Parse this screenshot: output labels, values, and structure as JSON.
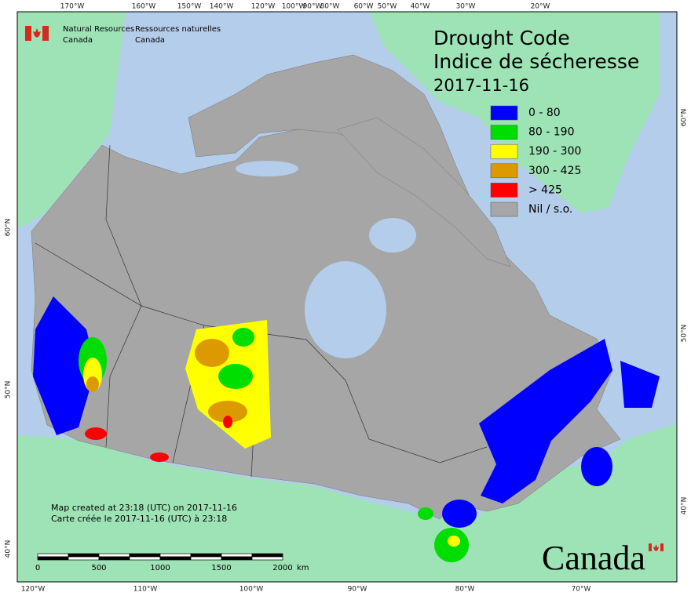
{
  "agency": {
    "en": [
      "Natural Resources",
      "Canada"
    ],
    "fr": [
      "Ressources naturelles",
      "Canada"
    ]
  },
  "title": {
    "en": "Drought Code",
    "fr": "Indice de sécheresse",
    "date": "2017-11-16"
  },
  "legend": [
    {
      "label": "0 - 80",
      "color": "#0000ff"
    },
    {
      "label": "80 - 190",
      "color": "#00dd00"
    },
    {
      "label": "190 - 300",
      "color": "#ffff00"
    },
    {
      "label": "300 - 425",
      "color": "#dd9900"
    },
    {
      "label": "> 425",
      "color": "#ff0000"
    },
    {
      "label": "Nil / s.o.",
      "color": "#a6a6a6"
    }
  ],
  "graticule": {
    "top": [
      "170°W",
      "160°W",
      "150°W",
      "140°W",
      "120°W",
      "100°W",
      "90°W",
      "80°W",
      "60°W",
      "50°W",
      "40°W",
      "30°W",
      "20°W"
    ],
    "bottom": [
      "120°W",
      "110°W",
      "100°W",
      "90°W",
      "80°W",
      "70°W"
    ],
    "left": [
      "60°N",
      "50°N",
      "40°N"
    ],
    "right": [
      "60°N",
      "50°N",
      "40°N"
    ]
  },
  "notes": [
    "Map created at 23:18 (UTC) on 2017-11-16",
    "Carte créée le 2017-11-16 (UTC) à 23:18"
  ],
  "scale_bar": {
    "labels": [
      0,
      500,
      1000,
      1500,
      2000
    ],
    "unit": "km"
  },
  "wordmark": "Canada"
}
